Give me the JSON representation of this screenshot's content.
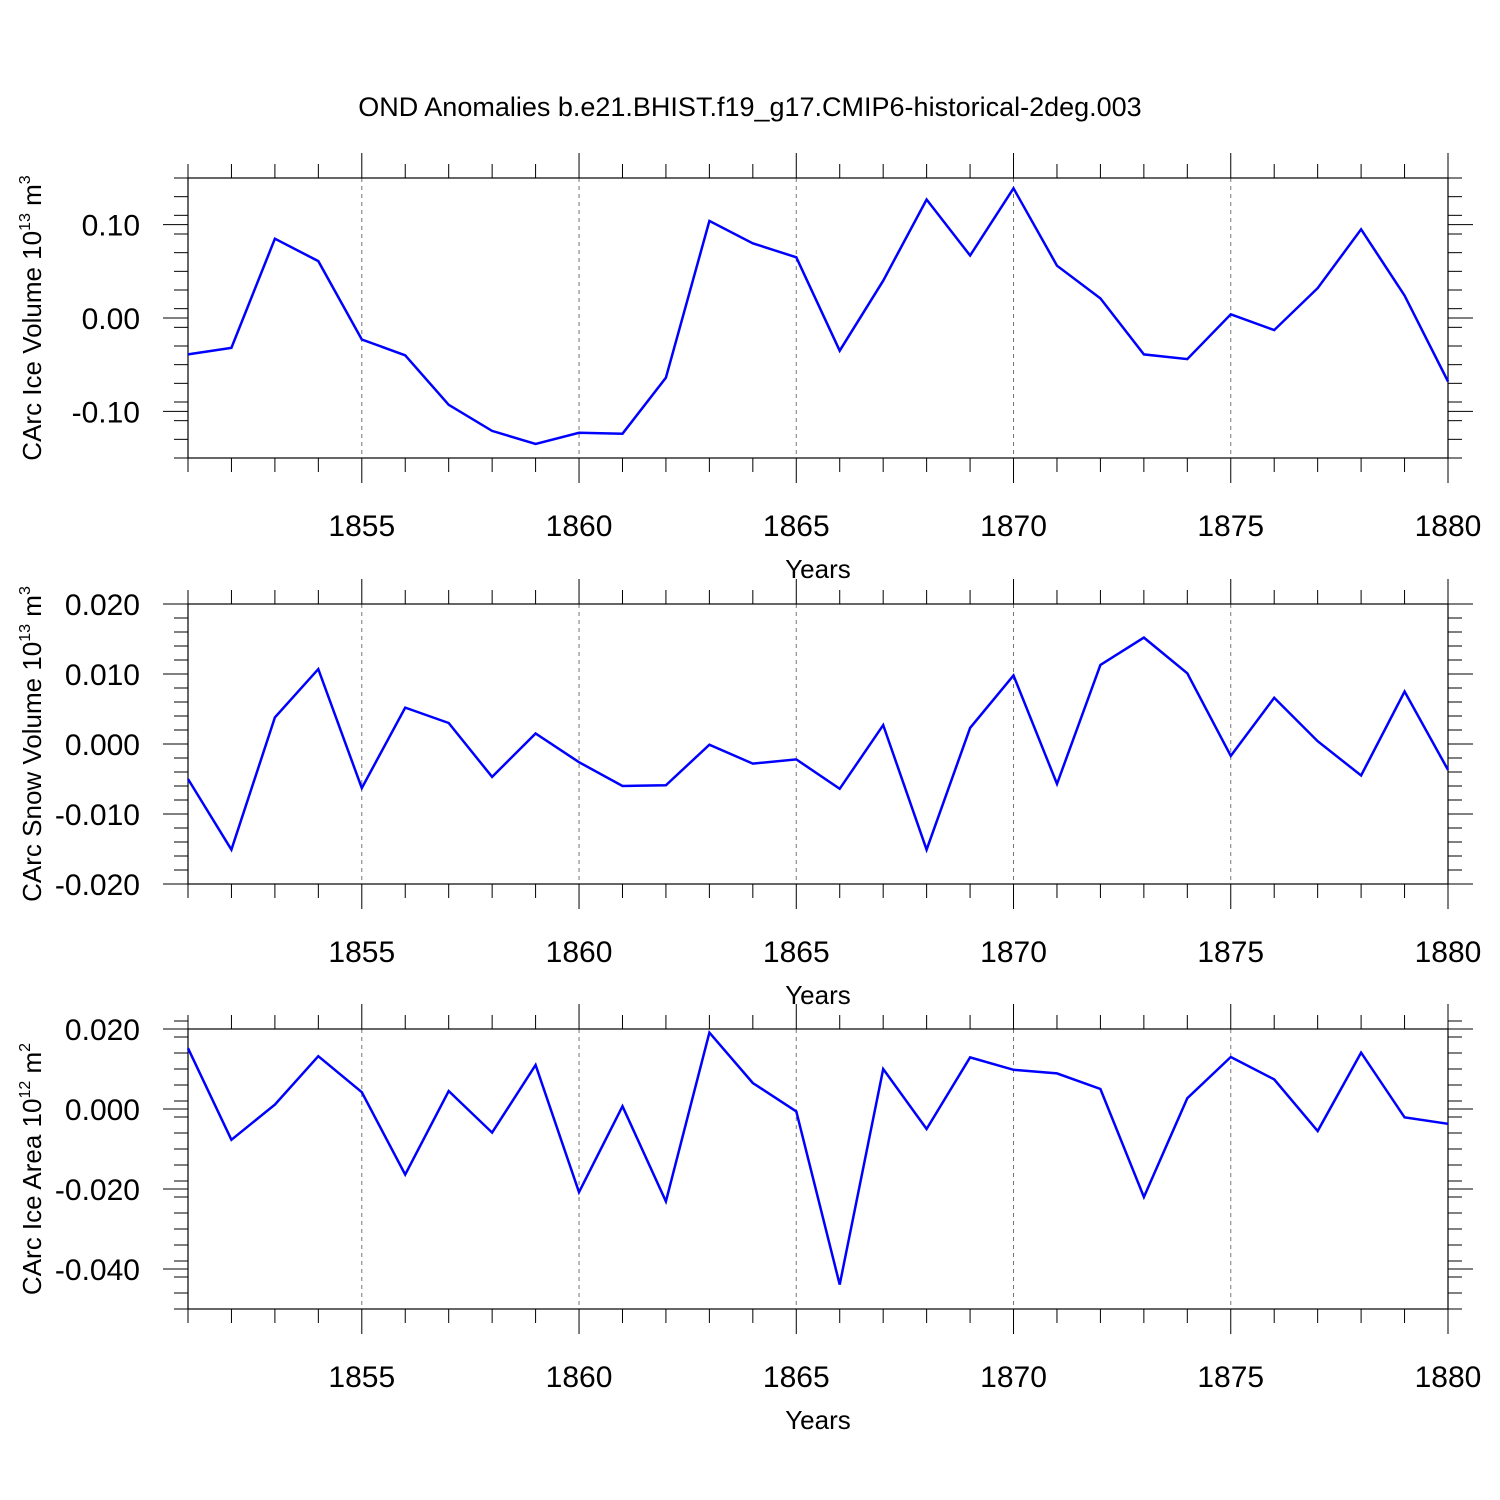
{
  "title": "OND Anomalies b.e21.BHIST.f19_g17.CMIP6-historical-2deg.003",
  "colors": {
    "series": "#0000ff",
    "axis": "#000000",
    "grid": "#777777"
  },
  "chart_data": [
    {
      "type": "line",
      "ylabel": "CArc Ice Volume 10",
      "ylabel_exp": "13",
      "ylabel_unit": " m",
      "ylabel_unit_exp": "3",
      "xlabel": "Years",
      "xlim": [
        1851,
        1880
      ],
      "ylim": [
        -0.15,
        0.15
      ],
      "x_ticks": [
        1855,
        1860,
        1865,
        1870,
        1875,
        1880
      ],
      "x_tick_labels": [
        "1855",
        "1860",
        "1865",
        "1870",
        "1875",
        "1880"
      ],
      "y_ticks": [
        -0.1,
        0.0,
        0.1
      ],
      "y_tick_labels": [
        "-0.10",
        "0.00",
        "0.10"
      ],
      "y_minor_step": 0.02,
      "grid": "dashed vertical at major x ticks",
      "x": [
        1851,
        1852,
        1853,
        1854,
        1855,
        1856,
        1857,
        1858,
        1859,
        1860,
        1861,
        1862,
        1863,
        1864,
        1865,
        1866,
        1867,
        1868,
        1869,
        1870,
        1871,
        1872,
        1873,
        1874,
        1875,
        1876,
        1877,
        1878,
        1879,
        1880
      ],
      "values": [
        -0.039,
        -0.032,
        0.085,
        0.061,
        -0.023,
        -0.04,
        -0.093,
        -0.121,
        -0.135,
        -0.123,
        -0.124,
        -0.064,
        0.104,
        0.08,
        0.065,
        -0.035,
        0.04,
        0.127,
        0.067,
        0.139,
        0.056,
        0.021,
        -0.039,
        -0.044,
        0.004,
        -0.013,
        0.032,
        0.095,
        0.024,
        -0.068
      ]
    },
    {
      "type": "line",
      "ylabel": "CArc Snow Volume 10",
      "ylabel_exp": "13",
      "ylabel_unit": " m",
      "ylabel_unit_exp": "3",
      "xlabel": "Years",
      "xlim": [
        1851,
        1880
      ],
      "ylim": [
        -0.02,
        0.02
      ],
      "x_ticks": [
        1855,
        1860,
        1865,
        1870,
        1875,
        1880
      ],
      "x_tick_labels": [
        "1855",
        "1860",
        "1865",
        "1870",
        "1875",
        "1880"
      ],
      "y_ticks": [
        -0.02,
        -0.01,
        0.0,
        0.01,
        0.02
      ],
      "y_tick_labels": [
        "-0.020",
        "-0.010",
        "0.000",
        "0.010",
        "0.020"
      ],
      "y_minor_step": 0.002,
      "grid": "dashed vertical at major x ticks",
      "x": [
        1851,
        1852,
        1853,
        1854,
        1855,
        1856,
        1857,
        1858,
        1859,
        1860,
        1861,
        1862,
        1863,
        1864,
        1865,
        1866,
        1867,
        1868,
        1869,
        1870,
        1871,
        1872,
        1873,
        1874,
        1875,
        1876,
        1877,
        1878,
        1879,
        1880
      ],
      "values": [
        -0.005,
        -0.0151,
        0.0038,
        0.0107,
        -0.0063,
        0.0052,
        0.003,
        -0.0047,
        0.0015,
        -0.0026,
        -0.006,
        -0.0059,
        -0.0001,
        -0.0028,
        -0.0022,
        -0.0064,
        0.0027,
        -0.0151,
        0.0023,
        0.0098,
        -0.0057,
        0.0113,
        0.0152,
        0.0101,
        -0.0017,
        0.0066,
        0.0004,
        -0.0045,
        0.0075,
        -0.0037
      ]
    },
    {
      "type": "line",
      "ylabel": "CArc Ice Area 10",
      "ylabel_exp": "12",
      "ylabel_unit": " m",
      "ylabel_unit_exp": "2",
      "xlabel": "Years",
      "xlim": [
        1851,
        1880
      ],
      "ylim": [
        -0.05,
        0.02
      ],
      "x_ticks": [
        1855,
        1860,
        1865,
        1870,
        1875,
        1880
      ],
      "x_tick_labels": [
        "1855",
        "1860",
        "1865",
        "1870",
        "1875",
        "1880"
      ],
      "y_ticks": [
        -0.04,
        -0.02,
        0.0,
        0.02
      ],
      "y_tick_labels": [
        "-0.040",
        "-0.020",
        "0.000",
        "0.020"
      ],
      "y_minor_step": 0.004,
      "grid": "dashed vertical at major x ticks",
      "x": [
        1851,
        1852,
        1853,
        1854,
        1855,
        1856,
        1857,
        1858,
        1859,
        1860,
        1861,
        1862,
        1863,
        1864,
        1865,
        1866,
        1867,
        1868,
        1869,
        1870,
        1871,
        1872,
        1873,
        1874,
        1875,
        1876,
        1877,
        1878,
        1879,
        1880
      ],
      "values": [
        0.0152,
        -0.0077,
        0.0011,
        0.0132,
        0.0042,
        -0.0164,
        0.0045,
        -0.0059,
        0.011,
        -0.0208,
        0.0007,
        -0.0231,
        0.0191,
        0.0065,
        -0.0006,
        -0.0439,
        0.01,
        -0.005,
        0.0129,
        0.0098,
        0.0089,
        0.005,
        -0.022,
        0.0027,
        0.013,
        0.0074,
        -0.0055,
        0.0141,
        -0.0021,
        -0.0037
      ]
    }
  ]
}
